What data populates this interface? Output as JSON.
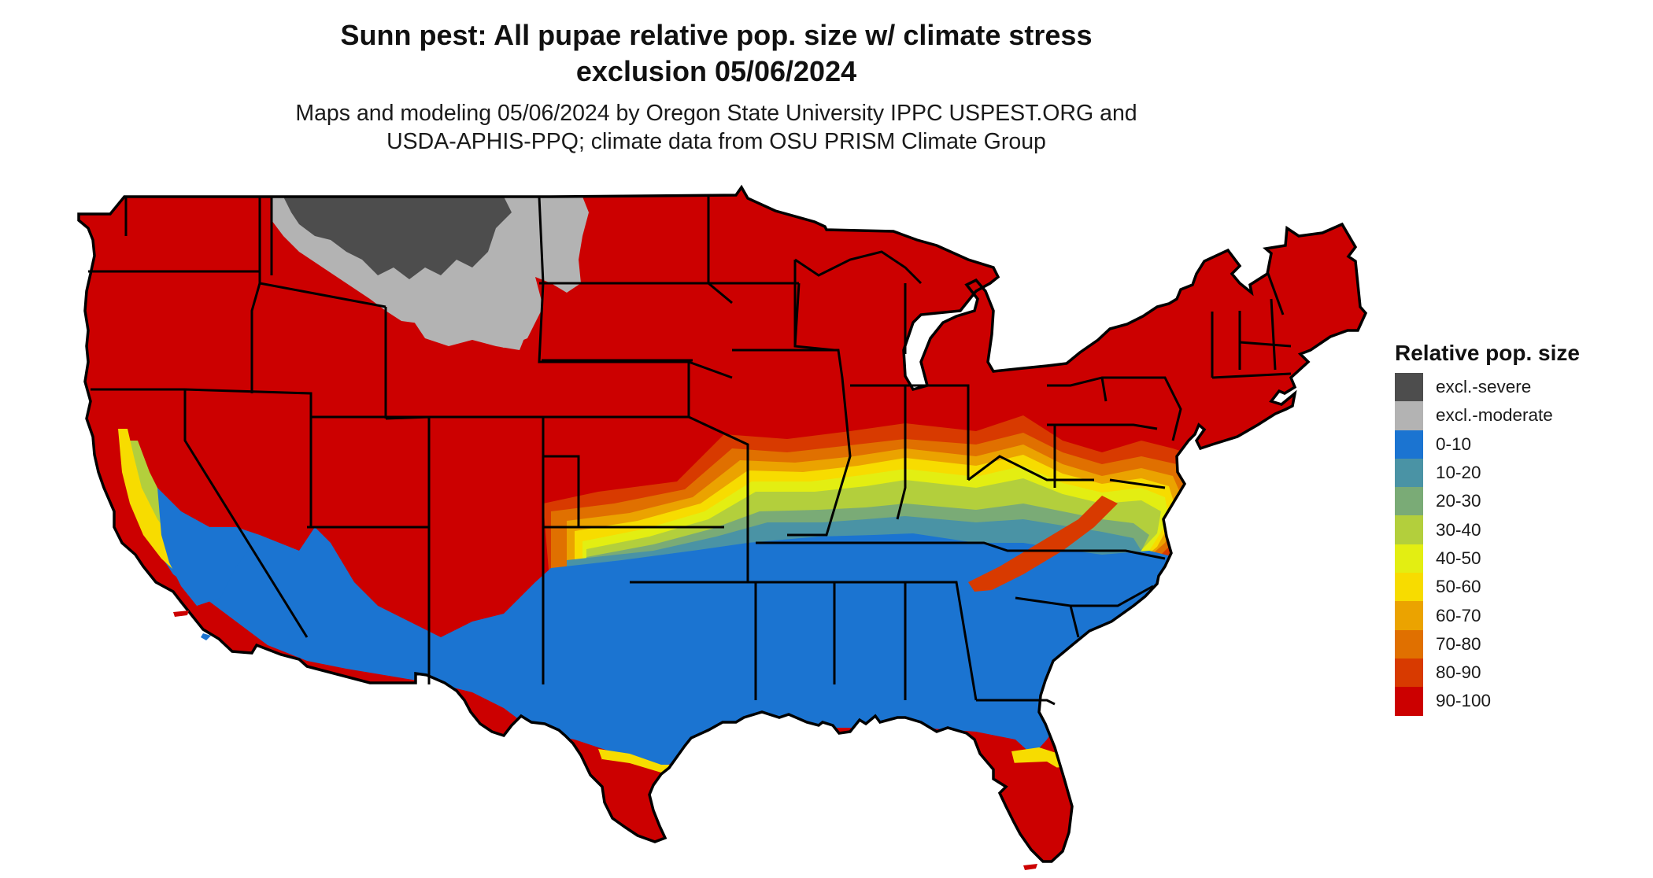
{
  "title": {
    "line1": "Sunn pest: All pupae relative pop. size w/ climate stress",
    "line2": "exclusion 05/06/2024"
  },
  "subtitle": {
    "line1": "Maps and modeling 05/06/2024 by Oregon State University IPPC USPEST.ORG and",
    "line2": "USDA-APHIS-PPQ; climate data from OSU PRISM Climate Group"
  },
  "legend": {
    "title": "Relative pop. size",
    "items": [
      {
        "label": "excl.-severe",
        "color": "#4d4d4d"
      },
      {
        "label": "excl.-moderate",
        "color": "#b3b3b3"
      },
      {
        "label": "0-10",
        "color": "#1b74d1"
      },
      {
        "label": "10-20",
        "color": "#4a93a5"
      },
      {
        "label": "20-30",
        "color": "#7aab76"
      },
      {
        "label": "30-40",
        "color": "#b3cf3c"
      },
      {
        "label": "40-50",
        "color": "#e3ee12"
      },
      {
        "label": "50-60",
        "color": "#f7dc00"
      },
      {
        "label": "60-70",
        "color": "#eba300"
      },
      {
        "label": "70-80",
        "color": "#e07000"
      },
      {
        "label": "80-90",
        "color": "#d83a00"
      },
      {
        "label": "90-100",
        "color": "#cc0000"
      }
    ]
  }
}
